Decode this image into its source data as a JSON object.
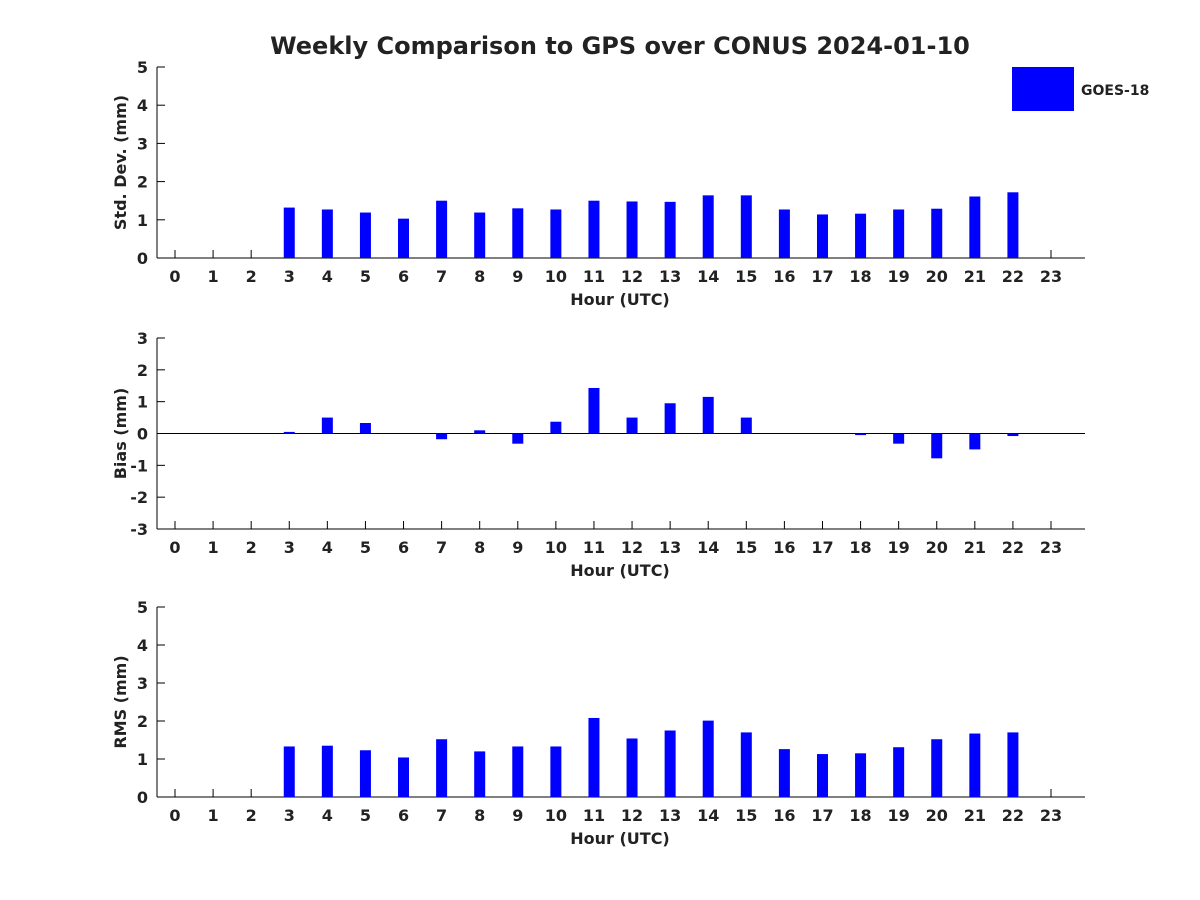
{
  "title": "Weekly Comparison to GPS over CONUS 2024-01-10",
  "legend": {
    "label": "GOES-18",
    "color": "#0000ff",
    "placement": "top-right"
  },
  "chart_data": [
    {
      "type": "bar",
      "ylabel": "Std. Dev. (mm)",
      "xlabel": "Hour (UTC)",
      "ylim": [
        0,
        5
      ],
      "yticks": [
        0,
        1,
        2,
        3,
        4,
        5
      ],
      "categories": [
        "0",
        "1",
        "2",
        "3",
        "4",
        "5",
        "6",
        "7",
        "8",
        "9",
        "10",
        "11",
        "12",
        "13",
        "14",
        "15",
        "16",
        "17",
        "18",
        "19",
        "20",
        "21",
        "22",
        "23"
      ],
      "series": [
        {
          "name": "GOES-18",
          "values": [
            null,
            null,
            null,
            1.32,
            1.27,
            1.19,
            1.03,
            1.5,
            1.19,
            1.3,
            1.27,
            1.5,
            1.48,
            1.47,
            1.64,
            1.64,
            1.27,
            1.14,
            1.16,
            1.27,
            1.29,
            1.61,
            1.72,
            null
          ]
        }
      ]
    },
    {
      "type": "bar",
      "ylabel": "Bias (mm)",
      "xlabel": "Hour (UTC)",
      "ylim": [
        -3,
        3
      ],
      "yticks": [
        -3,
        -2,
        -1,
        0,
        1,
        2,
        3
      ],
      "zero_line": true,
      "categories": [
        "0",
        "1",
        "2",
        "3",
        "4",
        "5",
        "6",
        "7",
        "8",
        "9",
        "10",
        "11",
        "12",
        "13",
        "14",
        "15",
        "16",
        "17",
        "18",
        "19",
        "20",
        "21",
        "22",
        "23"
      ],
      "series": [
        {
          "name": "GOES-18",
          "values": [
            null,
            null,
            null,
            0.05,
            0.5,
            0.33,
            0.0,
            -0.18,
            0.1,
            -0.32,
            0.37,
            1.43,
            0.5,
            0.95,
            1.15,
            0.5,
            0.0,
            0.0,
            -0.05,
            -0.32,
            -0.78,
            -0.5,
            -0.08,
            null
          ]
        }
      ]
    },
    {
      "type": "bar",
      "ylabel": "RMS (mm)",
      "xlabel": "Hour (UTC)",
      "ylim": [
        0,
        5
      ],
      "yticks": [
        0,
        1,
        2,
        3,
        4,
        5
      ],
      "categories": [
        "0",
        "1",
        "2",
        "3",
        "4",
        "5",
        "6",
        "7",
        "8",
        "9",
        "10",
        "11",
        "12",
        "13",
        "14",
        "15",
        "16",
        "17",
        "18",
        "19",
        "20",
        "21",
        "22",
        "23"
      ],
      "series": [
        {
          "name": "GOES-18",
          "values": [
            null,
            null,
            null,
            1.33,
            1.35,
            1.23,
            1.04,
            1.52,
            1.2,
            1.33,
            1.33,
            2.08,
            1.54,
            1.75,
            2.01,
            1.7,
            1.26,
            1.13,
            1.15,
            1.31,
            1.52,
            1.67,
            1.7,
            null
          ]
        }
      ]
    }
  ]
}
